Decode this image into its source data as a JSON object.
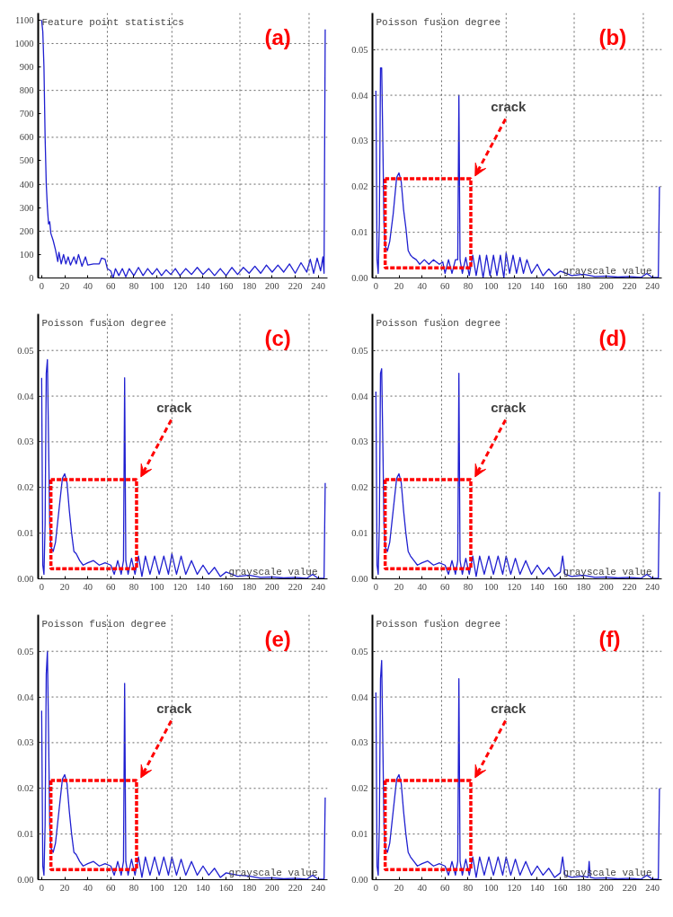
{
  "chart_data": [
    {
      "type": "line",
      "title": "(a)",
      "ylabel": "Feature point statistics",
      "xlim": [
        -3,
        248
      ],
      "ylim": [
        0,
        1130
      ],
      "xticks": [
        0,
        20,
        40,
        60,
        80,
        100,
        120,
        140,
        160,
        180,
        200,
        220,
        240
      ],
      "yticks": [
        0,
        100,
        200,
        300,
        400,
        500,
        600,
        700,
        800,
        900,
        1000,
        1100
      ],
      "ref_lines": [
        {
          "axis": "x",
          "value": 57,
          "color": "#666666",
          "line_style": "dotted"
        },
        {
          "axis": "x",
          "value": 113,
          "color": "#666666",
          "line_style": "dotted"
        },
        {
          "axis": "x",
          "value": 172,
          "color": "#666666",
          "line_style": "dotted"
        },
        {
          "axis": "x",
          "value": 232,
          "color": "#666666",
          "line_style": "dotted"
        },
        {
          "axis": "y",
          "value": 200,
          "color": "#666666",
          "line_style": "dotted"
        },
        {
          "axis": "y",
          "value": 400,
          "color": "#666666",
          "line_style": "dotted"
        },
        {
          "axis": "y",
          "value": 600,
          "color": "#666666",
          "line_style": "dotted"
        },
        {
          "axis": "y",
          "value": 800,
          "color": "#666666",
          "line_style": "dotted"
        },
        {
          "axis": "y",
          "value": 1000,
          "color": "#666666",
          "line_style": "dotted"
        }
      ],
      "series": [
        {
          "color": "#1f1fd0",
          "x": [
            0,
            1,
            2,
            3,
            4,
            5,
            6,
            7,
            8,
            10,
            12,
            14,
            15,
            17,
            19,
            21,
            23,
            25,
            28,
            30,
            32,
            35,
            38,
            40,
            45,
            50,
            52,
            55,
            57,
            60,
            62,
            64,
            67,
            70,
            73,
            76,
            80,
            84,
            88,
            92,
            96,
            100,
            104,
            108,
            112,
            116,
            120,
            125,
            130,
            135,
            140,
            145,
            150,
            155,
            160,
            165,
            170,
            175,
            180,
            185,
            190,
            195,
            200,
            205,
            210,
            215,
            220,
            225,
            230,
            233,
            236,
            239,
            242,
            244,
            245,
            246
          ],
          "values": [
            1100,
            1050,
            900,
            600,
            400,
            300,
            230,
            240,
            190,
            160,
            120,
            70,
            110,
            60,
            100,
            60,
            90,
            55,
            90,
            60,
            100,
            50,
            90,
            55,
            60,
            60,
            85,
            80,
            40,
            30,
            0,
            40,
            10,
            40,
            5,
            40,
            10,
            45,
            10,
            40,
            15,
            40,
            10,
            35,
            15,
            40,
            10,
            40,
            15,
            45,
            15,
            40,
            10,
            40,
            10,
            45,
            15,
            45,
            20,
            50,
            20,
            55,
            25,
            55,
            25,
            60,
            20,
            65,
            25,
            80,
            20,
            85,
            30,
            90,
            20,
            1060
          ]
        }
      ]
    },
    {
      "type": "line",
      "title": "(b)",
      "ylabel": "Poisson fusion degree",
      "xlabel": "grayscale value",
      "xlim": [
        -3,
        248
      ],
      "ylim": [
        0,
        0.058
      ],
      "xticks": [
        0,
        20,
        40,
        60,
        80,
        100,
        120,
        140,
        160,
        180,
        200,
        220,
        240
      ],
      "yticks": [
        {
          "value": 0,
          "label": "0.00"
        },
        {
          "value": 0.01,
          "label": "0.01"
        },
        {
          "value": 0.02,
          "label": "0.02"
        },
        {
          "value": 0.03,
          "label": "0.03"
        },
        {
          "value": 0.04,
          "label": "0.04"
        },
        {
          "value": 0.05,
          "label": "0.05"
        }
      ],
      "annotations": [
        "crack"
      ],
      "ref_lines": [
        {
          "axis": "x",
          "value": 57,
          "color": "#666666",
          "line_style": "dotted"
        },
        {
          "axis": "x",
          "value": 113,
          "color": "#666666",
          "line_style": "dotted"
        },
        {
          "axis": "x",
          "value": 172,
          "color": "#666666",
          "line_style": "dotted"
        },
        {
          "axis": "x",
          "value": 232,
          "color": "#666666",
          "line_style": "dotted"
        },
        {
          "axis": "y",
          "value": 0.01,
          "color": "#666666",
          "line_style": "dotted"
        },
        {
          "axis": "y",
          "value": 0.02,
          "color": "#666666",
          "line_style": "dotted"
        },
        {
          "axis": "y",
          "value": 0.03,
          "color": "#666666",
          "line_style": "dotted"
        },
        {
          "axis": "y",
          "value": 0.04,
          "color": "#666666",
          "line_style": "dotted"
        },
        {
          "axis": "y",
          "value": 0.05,
          "color": "#666666",
          "line_style": "dotted"
        }
      ],
      "series": [
        {
          "color": "#1f1fd0",
          "x": [
            0,
            1,
            2,
            3,
            4,
            5,
            6,
            7,
            8,
            10,
            12,
            15,
            18,
            20,
            22,
            24,
            26,
            28,
            30,
            32,
            35,
            38,
            42,
            46,
            50,
            55,
            58,
            60,
            63,
            66,
            69,
            71,
            72,
            73,
            75,
            78,
            81,
            84,
            87,
            90,
            93,
            96,
            99,
            102,
            105,
            108,
            111,
            113,
            116,
            119,
            122,
            125,
            128,
            131,
            135,
            140,
            145,
            150,
            155,
            160,
            170,
            180,
            190,
            200,
            210,
            220,
            230,
            235,
            240,
            245,
            246
          ],
          "values": [
            0.041,
            0.004,
            0.001,
            0.012,
            0.046,
            0.046,
            0.03,
            0.012,
            0.007,
            0.006,
            0.008,
            0.014,
            0.022,
            0.023,
            0.021,
            0.015,
            0.011,
            0.006,
            0.005,
            0.0045,
            0.004,
            0.003,
            0.004,
            0.003,
            0.004,
            0.003,
            0.0035,
            0.001,
            0.004,
            0.001,
            0.004,
            0.004,
            0.04,
            0.004,
            0.001,
            0.0045,
            0.0005,
            0.005,
            0.0005,
            0.005,
            0,
            0.005,
            0.0005,
            0.005,
            0.0005,
            0.005,
            0,
            0.0055,
            0.001,
            0.005,
            0.001,
            0.0045,
            0.001,
            0.004,
            0.001,
            0.003,
            0.0005,
            0.002,
            0.0005,
            0.0015,
            0.0005,
            0.0008,
            0.0003,
            0.0004,
            0.0002,
            0.0003,
            0.0001,
            0.001,
            0.0001,
            0.0001,
            0.02
          ]
        }
      ]
    },
    {
      "type": "line",
      "title": "(c)",
      "ylabel": "Poisson fusion degree",
      "xlabel": "grayscale value",
      "xlim": [
        -3,
        248
      ],
      "ylim": [
        0,
        0.058
      ],
      "xticks": [
        0,
        20,
        40,
        60,
        80,
        100,
        120,
        140,
        160,
        180,
        200,
        220,
        240
      ],
      "yticks": [
        {
          "value": 0,
          "label": "0.00"
        },
        {
          "value": 0.01,
          "label": "0.01"
        },
        {
          "value": 0.02,
          "label": "0.02"
        },
        {
          "value": 0.03,
          "label": "0.03"
        },
        {
          "value": 0.04,
          "label": "0.04"
        },
        {
          "value": 0.05,
          "label": "0.05"
        }
      ],
      "annotations": [
        "crack"
      ],
      "ref_lines": [
        {
          "axis": "x",
          "value": 57,
          "color": "#666666",
          "line_style": "dotted"
        },
        {
          "axis": "x",
          "value": 113,
          "color": "#666666",
          "line_style": "dotted"
        },
        {
          "axis": "x",
          "value": 172,
          "color": "#666666",
          "line_style": "dotted"
        },
        {
          "axis": "x",
          "value": 232,
          "color": "#666666",
          "line_style": "dotted"
        },
        {
          "axis": "y",
          "value": 0.01,
          "color": "#666666",
          "line_style": "dotted"
        },
        {
          "axis": "y",
          "value": 0.02,
          "color": "#666666",
          "line_style": "dotted"
        },
        {
          "axis": "y",
          "value": 0.03,
          "color": "#666666",
          "line_style": "dotted"
        },
        {
          "axis": "y",
          "value": 0.04,
          "color": "#666666",
          "line_style": "dotted"
        },
        {
          "axis": "y",
          "value": 0.05,
          "color": "#666666",
          "line_style": "dotted"
        }
      ],
      "series": [
        {
          "color": "#1f1fd0",
          "x": [
            0,
            1,
            2,
            3,
            4,
            5,
            6,
            7,
            8,
            10,
            12,
            15,
            18,
            20,
            22,
            24,
            26,
            28,
            30,
            33,
            36,
            40,
            45,
            50,
            55,
            60,
            63,
            66,
            69,
            71,
            72,
            73,
            75,
            78,
            81,
            84,
            87,
            90,
            94,
            98,
            102,
            106,
            110,
            113,
            117,
            121,
            125,
            130,
            135,
            140,
            145,
            150,
            155,
            160,
            170,
            180,
            190,
            200,
            210,
            220,
            230,
            235,
            240,
            245,
            246
          ],
          "values": [
            0.044,
            0.003,
            0.001,
            0.012,
            0.045,
            0.048,
            0.03,
            0.012,
            0.007,
            0.006,
            0.008,
            0.015,
            0.022,
            0.023,
            0.021,
            0.015,
            0.01,
            0.006,
            0.0055,
            0.004,
            0.003,
            0.0035,
            0.004,
            0.003,
            0.0035,
            0.003,
            0.001,
            0.004,
            0.001,
            0.004,
            0.044,
            0.004,
            0.001,
            0.0045,
            0.001,
            0.005,
            0.0005,
            0.005,
            0.001,
            0.005,
            0.001,
            0.005,
            0.001,
            0.0055,
            0.001,
            0.005,
            0.001,
            0.004,
            0.001,
            0.003,
            0.001,
            0.0025,
            0.0005,
            0.0015,
            0.0005,
            0.0008,
            0.0003,
            0.0004,
            0.0002,
            0.0003,
            0.0001,
            0.001,
            0.0001,
            0.0001,
            0.021
          ]
        }
      ]
    },
    {
      "type": "line",
      "title": "(d)",
      "ylabel": "Poisson fusion degree",
      "xlabel": "grayscale value",
      "xlim": [
        -3,
        248
      ],
      "ylim": [
        0,
        0.058
      ],
      "xticks": [
        0,
        20,
        40,
        60,
        80,
        100,
        120,
        140,
        160,
        180,
        200,
        220,
        240
      ],
      "yticks": [
        {
          "value": 0,
          "label": "0.00"
        },
        {
          "value": 0.01,
          "label": "0.01"
        },
        {
          "value": 0.02,
          "label": "0.02"
        },
        {
          "value": 0.03,
          "label": "0.03"
        },
        {
          "value": 0.04,
          "label": "0.04"
        },
        {
          "value": 0.05,
          "label": "0.05"
        }
      ],
      "annotations": [
        "crack"
      ],
      "ref_lines": [
        {
          "axis": "x",
          "value": 57,
          "color": "#666666",
          "line_style": "dotted"
        },
        {
          "axis": "x",
          "value": 113,
          "color": "#666666",
          "line_style": "dotted"
        },
        {
          "axis": "x",
          "value": 172,
          "color": "#666666",
          "line_style": "dotted"
        },
        {
          "axis": "x",
          "value": 232,
          "color": "#666666",
          "line_style": "dotted"
        },
        {
          "axis": "y",
          "value": 0.01,
          "color": "#666666",
          "line_style": "dotted"
        },
        {
          "axis": "y",
          "value": 0.02,
          "color": "#666666",
          "line_style": "dotted"
        },
        {
          "axis": "y",
          "value": 0.03,
          "color": "#666666",
          "line_style": "dotted"
        },
        {
          "axis": "y",
          "value": 0.04,
          "color": "#666666",
          "line_style": "dotted"
        },
        {
          "axis": "y",
          "value": 0.05,
          "color": "#666666",
          "line_style": "dotted"
        }
      ],
      "series": [
        {
          "color": "#1f1fd0",
          "x": [
            0,
            1,
            2,
            3,
            4,
            5,
            6,
            7,
            8,
            10,
            12,
            15,
            18,
            20,
            22,
            24,
            26,
            28,
            30,
            33,
            36,
            40,
            45,
            50,
            55,
            60,
            63,
            66,
            69,
            71,
            72,
            73,
            75,
            78,
            81,
            84,
            87,
            90,
            94,
            98,
            102,
            106,
            110,
            113,
            117,
            121,
            125,
            130,
            135,
            140,
            145,
            150,
            155,
            160,
            162,
            164,
            170,
            180,
            190,
            200,
            210,
            220,
            230,
            235,
            240,
            245,
            246
          ],
          "values": [
            0.041,
            0.003,
            0.001,
            0.012,
            0.045,
            0.046,
            0.03,
            0.012,
            0.007,
            0.006,
            0.008,
            0.015,
            0.022,
            0.023,
            0.021,
            0.015,
            0.01,
            0.006,
            0.005,
            0.004,
            0.003,
            0.0035,
            0.004,
            0.003,
            0.0035,
            0.003,
            0.001,
            0.004,
            0.001,
            0.004,
            0.045,
            0.004,
            0.001,
            0.0045,
            0.001,
            0.005,
            0.0005,
            0.005,
            0.001,
            0.005,
            0.001,
            0.005,
            0.001,
            0.005,
            0.001,
            0.0045,
            0.001,
            0.004,
            0.001,
            0.003,
            0.001,
            0.0025,
            0.0005,
            0.0015,
            0.005,
            0.001,
            0.0005,
            0.0008,
            0.0003,
            0.0004,
            0.0002,
            0.0003,
            0.0001,
            0.001,
            0.0001,
            0.0001,
            0.019
          ]
        }
      ]
    },
    {
      "type": "line",
      "title": "(e)",
      "ylabel": "Poisson fusion degree",
      "xlabel": "grayscale value",
      "xlim": [
        -3,
        248
      ],
      "ylim": [
        0,
        0.058
      ],
      "xticks": [
        0,
        20,
        40,
        60,
        80,
        100,
        120,
        140,
        160,
        180,
        200,
        220,
        240
      ],
      "yticks": [
        {
          "value": 0,
          "label": "0.00"
        },
        {
          "value": 0.01,
          "label": "0.01"
        },
        {
          "value": 0.02,
          "label": "0.02"
        },
        {
          "value": 0.03,
          "label": "0.03"
        },
        {
          "value": 0.04,
          "label": "0.04"
        },
        {
          "value": 0.05,
          "label": "0.05"
        }
      ],
      "annotations": [
        "crack"
      ],
      "ref_lines": [
        {
          "axis": "x",
          "value": 57,
          "color": "#666666",
          "line_style": "dotted"
        },
        {
          "axis": "x",
          "value": 113,
          "color": "#666666",
          "line_style": "dotted"
        },
        {
          "axis": "x",
          "value": 172,
          "color": "#666666",
          "line_style": "dotted"
        },
        {
          "axis": "x",
          "value": 232,
          "color": "#666666",
          "line_style": "dotted"
        },
        {
          "axis": "y",
          "value": 0.01,
          "color": "#666666",
          "line_style": "dotted"
        },
        {
          "axis": "y",
          "value": 0.02,
          "color": "#666666",
          "line_style": "dotted"
        },
        {
          "axis": "y",
          "value": 0.03,
          "color": "#666666",
          "line_style": "dotted"
        },
        {
          "axis": "y",
          "value": 0.04,
          "color": "#666666",
          "line_style": "dotted"
        },
        {
          "axis": "y",
          "value": 0.05,
          "color": "#666666",
          "line_style": "dotted"
        }
      ],
      "series": [
        {
          "color": "#1f1fd0",
          "x": [
            0,
            1,
            2,
            3,
            4,
            5,
            6,
            7,
            8,
            10,
            12,
            15,
            18,
            20,
            22,
            24,
            26,
            28,
            30,
            33,
            36,
            40,
            45,
            50,
            55,
            60,
            63,
            66,
            69,
            71,
            72,
            73,
            75,
            78,
            81,
            84,
            87,
            90,
            94,
            98,
            102,
            106,
            110,
            113,
            117,
            121,
            125,
            130,
            135,
            140,
            145,
            150,
            155,
            160,
            170,
            180,
            190,
            200,
            210,
            220,
            230,
            235,
            240,
            245,
            246
          ],
          "values": [
            0.037,
            0.003,
            0.001,
            0.012,
            0.045,
            0.05,
            0.032,
            0.012,
            0.007,
            0.006,
            0.008,
            0.015,
            0.022,
            0.023,
            0.021,
            0.015,
            0.01,
            0.006,
            0.0055,
            0.004,
            0.003,
            0.0035,
            0.004,
            0.003,
            0.0035,
            0.003,
            0.001,
            0.004,
            0.001,
            0.004,
            0.043,
            0.004,
            0.001,
            0.0045,
            0.001,
            0.005,
            0.0005,
            0.005,
            0.001,
            0.005,
            0.001,
            0.005,
            0.001,
            0.005,
            0.001,
            0.0045,
            0.001,
            0.004,
            0.001,
            0.003,
            0.001,
            0.0025,
            0.0005,
            0.0015,
            0.001,
            0.0008,
            0.0003,
            0.0004,
            0.0002,
            0.0003,
            0.0001,
            0.001,
            0.0001,
            0.0001,
            0.018
          ]
        }
      ]
    },
    {
      "type": "line",
      "title": "(f)",
      "ylabel": "Poisson fusion degree",
      "xlabel": "grayscale value",
      "xlim": [
        -3,
        248
      ],
      "ylim": [
        0,
        0.058
      ],
      "xticks": [
        0,
        20,
        40,
        60,
        80,
        100,
        120,
        140,
        160,
        180,
        200,
        220,
        240
      ],
      "yticks": [
        {
          "value": 0,
          "label": "0.00"
        },
        {
          "value": 0.01,
          "label": "0.01"
        },
        {
          "value": 0.02,
          "label": "0.02"
        },
        {
          "value": 0.03,
          "label": "0.03"
        },
        {
          "value": 0.04,
          "label": "0.04"
        },
        {
          "value": 0.05,
          "label": "0.05"
        }
      ],
      "annotations": [
        "crack"
      ],
      "ref_lines": [
        {
          "axis": "x",
          "value": 57,
          "color": "#666666",
          "line_style": "dotted"
        },
        {
          "axis": "x",
          "value": 113,
          "color": "#666666",
          "line_style": "dotted"
        },
        {
          "axis": "x",
          "value": 172,
          "color": "#666666",
          "line_style": "dotted"
        },
        {
          "axis": "x",
          "value": 232,
          "color": "#666666",
          "line_style": "dotted"
        },
        {
          "axis": "y",
          "value": 0.01,
          "color": "#666666",
          "line_style": "dotted"
        },
        {
          "axis": "y",
          "value": 0.02,
          "color": "#666666",
          "line_style": "dotted"
        },
        {
          "axis": "y",
          "value": 0.03,
          "color": "#666666",
          "line_style": "dotted"
        },
        {
          "axis": "y",
          "value": 0.04,
          "color": "#666666",
          "line_style": "dotted"
        },
        {
          "axis": "y",
          "value": 0.05,
          "color": "#666666",
          "line_style": "dotted"
        }
      ],
      "series": [
        {
          "color": "#1f1fd0",
          "x": [
            0,
            1,
            2,
            3,
            4,
            5,
            6,
            7,
            8,
            10,
            12,
            15,
            18,
            20,
            22,
            24,
            26,
            28,
            30,
            33,
            36,
            40,
            45,
            50,
            55,
            60,
            63,
            66,
            69,
            71,
            72,
            73,
            75,
            78,
            81,
            84,
            87,
            90,
            94,
            98,
            102,
            106,
            110,
            113,
            117,
            121,
            125,
            130,
            135,
            140,
            145,
            150,
            155,
            160,
            162,
            164,
            170,
            180,
            184,
            185,
            186,
            190,
            200,
            210,
            220,
            230,
            235,
            240,
            245,
            246
          ],
          "values": [
            0.041,
            0.003,
            0.001,
            0.012,
            0.044,
            0.048,
            0.03,
            0.012,
            0.007,
            0.006,
            0.008,
            0.015,
            0.022,
            0.023,
            0.021,
            0.015,
            0.01,
            0.006,
            0.005,
            0.004,
            0.003,
            0.0035,
            0.004,
            0.003,
            0.0035,
            0.003,
            0.001,
            0.004,
            0.001,
            0.004,
            0.044,
            0.004,
            0.001,
            0.0045,
            0.001,
            0.005,
            0.0005,
            0.005,
            0.001,
            0.005,
            0.001,
            0.005,
            0.001,
            0.005,
            0.001,
            0.0045,
            0.001,
            0.004,
            0.001,
            0.003,
            0.001,
            0.0025,
            0.0005,
            0.0015,
            0.005,
            0.001,
            0.0005,
            0.0008,
            0.0005,
            0.004,
            0.0005,
            0.0003,
            0.0004,
            0.0002,
            0.0003,
            0.0001,
            0.001,
            0.0001,
            0.0001,
            0.02
          ]
        }
      ]
    }
  ]
}
